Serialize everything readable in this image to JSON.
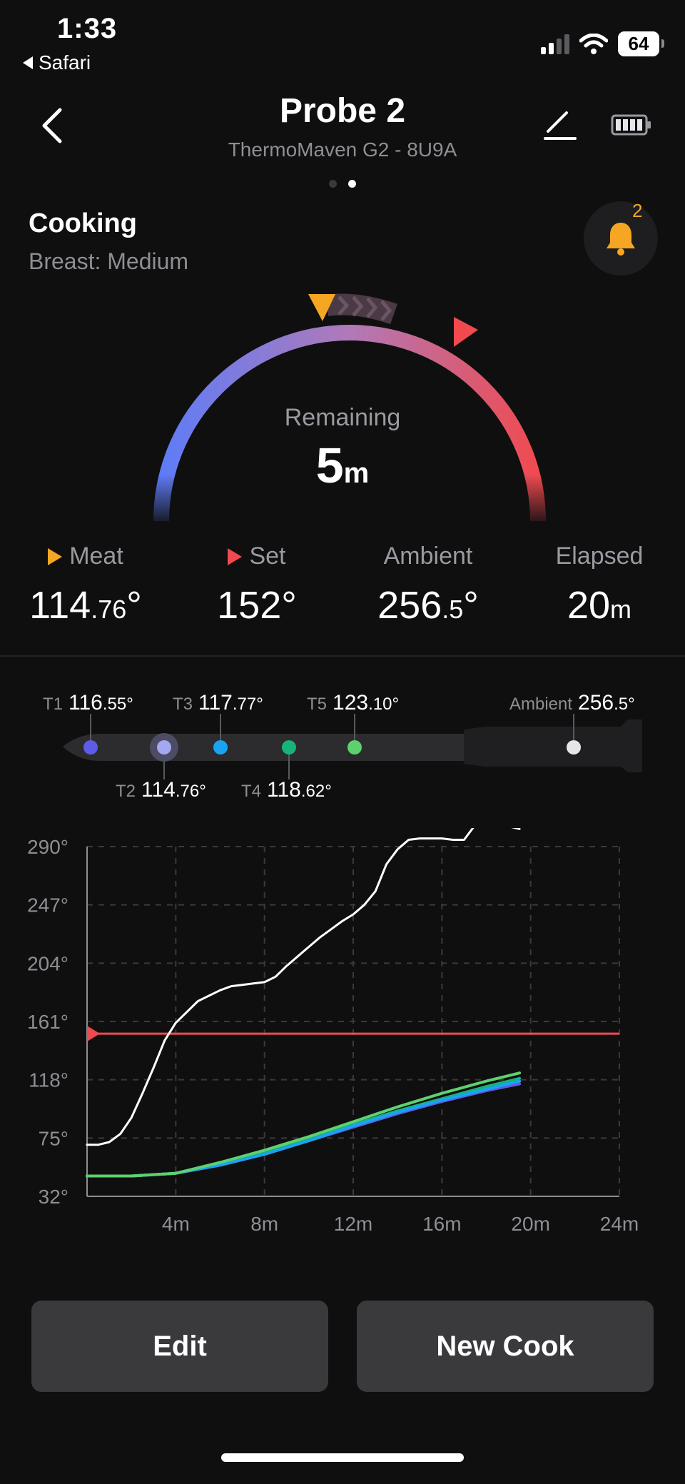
{
  "status_bar": {
    "time": "1:33",
    "back_app": "Safari",
    "battery": "64"
  },
  "header": {
    "title": "Probe 2",
    "subtitle": "ThermoMaven G2 - 8U9A",
    "back_icon": "chevron-left-icon",
    "edit_icon": "pencil-icon",
    "battery_icon": "probe-battery-icon"
  },
  "page_indicator": {
    "count": 2,
    "active": 1
  },
  "cook": {
    "status": "Cooking",
    "preset": "Breast: Medium"
  },
  "notifications": {
    "count": "2",
    "icon": "bell-icon"
  },
  "gauge": {
    "label": "Remaining",
    "value": "5",
    "unit": "m"
  },
  "stats": [
    {
      "label": "Meat",
      "int": "114",
      "dec": ".76",
      "unit": "°",
      "marker": "orange"
    },
    {
      "label": "Set",
      "int": "152",
      "dec": "",
      "unit": "°",
      "marker": "red"
    },
    {
      "label": "Ambient",
      "int": "256",
      "dec": ".5",
      "unit": "°",
      "marker": ""
    },
    {
      "label": "Elapsed",
      "int": "20",
      "dec": "",
      "unit": "m",
      "marker": ""
    }
  ],
  "sensors": [
    {
      "name": "T1",
      "int": "116",
      "dec": ".55°",
      "color": "#5e5ce6"
    },
    {
      "name": "T2",
      "int": "114",
      "dec": ".76°",
      "color": "#a3a8f0"
    },
    {
      "name": "T3",
      "int": "117",
      "dec": ".77°",
      "color": "#1aa3f0"
    },
    {
      "name": "T4",
      "int": "118",
      "dec": ".62°",
      "color": "#17b37a"
    },
    {
      "name": "T5",
      "int": "123",
      "dec": ".10°",
      "color": "#5ed16f"
    },
    {
      "name": "Ambient",
      "int": "256",
      "dec": ".5°",
      "color": "#e5e5ea"
    }
  ],
  "chart_data": {
    "type": "line",
    "x_unit": "m",
    "xlim": [
      0,
      24
    ],
    "ylim": [
      32,
      290
    ],
    "x_ticks": [
      "4m",
      "8m",
      "12m",
      "16m",
      "20m",
      "24m"
    ],
    "y_ticks": [
      "290°",
      "247°",
      "204°",
      "161°",
      "118°",
      "75°",
      "32°"
    ],
    "set_line": 152,
    "grid": true,
    "series": [
      {
        "color": "#ffffff",
        "points": [
          [
            0,
            70
          ],
          [
            0.5,
            70
          ],
          [
            1,
            72
          ],
          [
            1.5,
            78
          ],
          [
            2,
            90
          ],
          [
            2.5,
            108
          ],
          [
            3,
            127
          ],
          [
            3.5,
            147
          ],
          [
            4,
            160
          ],
          [
            4.5,
            168
          ],
          [
            5,
            176
          ],
          [
            5.5,
            180
          ],
          [
            6,
            184
          ],
          [
            6.5,
            187
          ],
          [
            7,
            188
          ],
          [
            7.5,
            189
          ],
          [
            8,
            190
          ],
          [
            8.5,
            194
          ],
          [
            9,
            202
          ],
          [
            9.5,
            209
          ],
          [
            10,
            216
          ],
          [
            10.5,
            223
          ],
          [
            11,
            229
          ],
          [
            11.5,
            235
          ],
          [
            12,
            240
          ],
          [
            12.5,
            247
          ],
          [
            13,
            257
          ],
          [
            13.5,
            277
          ],
          [
            14,
            288
          ],
          [
            14.5,
            295
          ],
          [
            15,
            296
          ],
          [
            15.5,
            296
          ],
          [
            16,
            296
          ],
          [
            16.5,
            295
          ],
          [
            17,
            295
          ],
          [
            17.5,
            306
          ],
          [
            18,
            310
          ],
          [
            18.5,
            309
          ],
          [
            19,
            305
          ],
          [
            19.5,
            303
          ]
        ]
      },
      {
        "color": "#5e5ce6",
        "points": [
          [
            0,
            47
          ],
          [
            2,
            47
          ],
          [
            4,
            49
          ],
          [
            6,
            55
          ],
          [
            8,
            63
          ],
          [
            10,
            73
          ],
          [
            12,
            83
          ],
          [
            14,
            93
          ],
          [
            16,
            102
          ],
          [
            18,
            110
          ],
          [
            19.5,
            115
          ]
        ]
      },
      {
        "color": "#17b37a",
        "points": [
          [
            0,
            47
          ],
          [
            2,
            47
          ],
          [
            4,
            49
          ],
          [
            6,
            56
          ],
          [
            8,
            64
          ],
          [
            10,
            74
          ],
          [
            12,
            85
          ],
          [
            14,
            95
          ],
          [
            16,
            104
          ],
          [
            18,
            113
          ],
          [
            19.5,
            119
          ]
        ]
      },
      {
        "color": "#1aa3f0",
        "points": [
          [
            0,
            47
          ],
          [
            2,
            47
          ],
          [
            4,
            49
          ],
          [
            6,
            55
          ],
          [
            8,
            63
          ],
          [
            10,
            73
          ],
          [
            12,
            84
          ],
          [
            14,
            94
          ],
          [
            16,
            103
          ],
          [
            18,
            111
          ],
          [
            19.5,
            117
          ]
        ]
      },
      {
        "color": "#5ed16f",
        "points": [
          [
            0,
            47
          ],
          [
            2,
            47
          ],
          [
            4,
            49
          ],
          [
            6,
            57
          ],
          [
            8,
            66
          ],
          [
            10,
            76
          ],
          [
            12,
            87
          ],
          [
            14,
            98
          ],
          [
            16,
            108
          ],
          [
            18,
            117
          ],
          [
            19.5,
            123
          ]
        ]
      }
    ]
  },
  "buttons": {
    "edit": "Edit",
    "new_cook": "New Cook"
  },
  "colors": {
    "orange": "#f5a623",
    "red": "#f04a4f",
    "gauge_start": "#5e7cf7",
    "gauge_end": "#f04a4f"
  }
}
